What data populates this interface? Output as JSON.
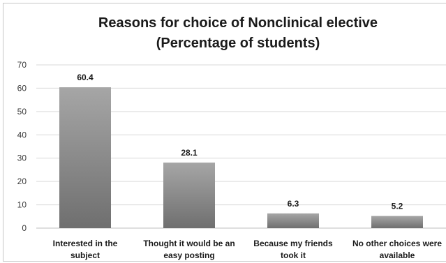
{
  "chart_data": {
    "type": "bar",
    "title": "Reasons for choice of Nonclinical elective",
    "subtitle": "(Percentage of students)",
    "categories": [
      [
        "Interested in the",
        "subject"
      ],
      [
        "Thought it would be an",
        "easy posting"
      ],
      [
        "Because my friends",
        "took it"
      ],
      [
        "No other choices were",
        "available"
      ]
    ],
    "values": [
      60.4,
      28.1,
      6.3,
      5.2
    ],
    "data_labels": [
      "60.4",
      "28.1",
      "6.3",
      "5.2"
    ],
    "ylim": [
      0,
      70
    ],
    "yticks": [
      0,
      10,
      20,
      30,
      40,
      50,
      60,
      70
    ],
    "grid": true,
    "legend": "none",
    "bar_color": "#8a8a8a",
    "bar_gradient_light": "#a6a6a6",
    "bar_gradient_dark": "#6f6f6f",
    "grid_color": "#d9d9d9"
  }
}
